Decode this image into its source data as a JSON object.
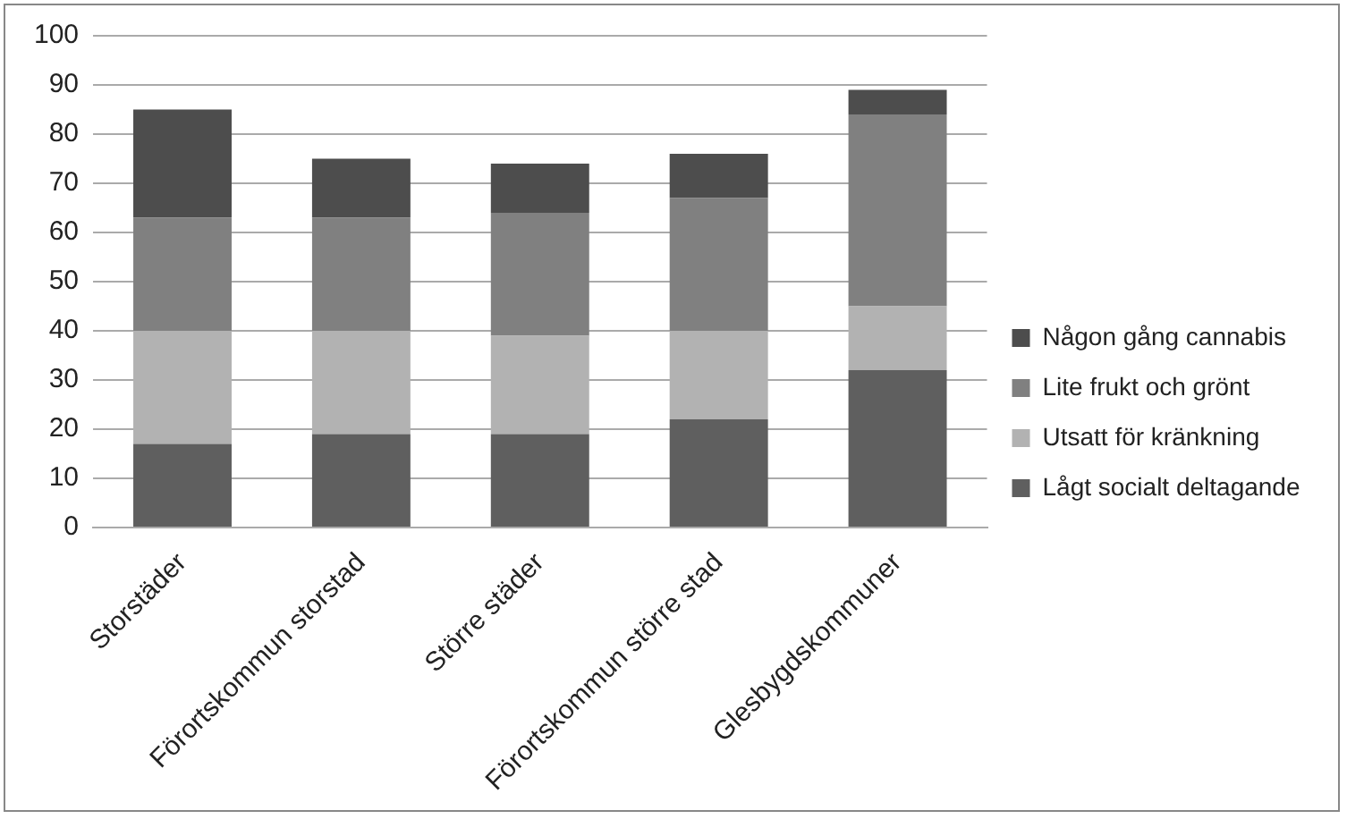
{
  "chart_data": {
    "type": "bar",
    "stacked": true,
    "categories": [
      "Storstäder",
      "Förortskommun storstad",
      "Större städer",
      "Förortskommun större stad",
      "Glesbygdskommuner"
    ],
    "series": [
      {
        "name": "Lågt socialt deltagande",
        "color": "#5f5f5f",
        "values": [
          17,
          19,
          19,
          22,
          32
        ]
      },
      {
        "name": "Utsatt för kränkning",
        "color": "#b2b2b2",
        "values": [
          23,
          21,
          20,
          18,
          13
        ]
      },
      {
        "name": "Lite frukt och grönt",
        "color": "#808080",
        "values": [
          23,
          23,
          25,
          27,
          39
        ]
      },
      {
        "name": "Någon gång cannabis",
        "color": "#4d4d4d",
        "values": [
          22,
          12,
          10,
          9,
          5
        ]
      }
    ],
    "ylim": [
      0,
      100
    ],
    "yticks": [
      0,
      10,
      20,
      30,
      40,
      50,
      60,
      70,
      80,
      90,
      100
    ],
    "grid": "y",
    "legend": "right"
  }
}
